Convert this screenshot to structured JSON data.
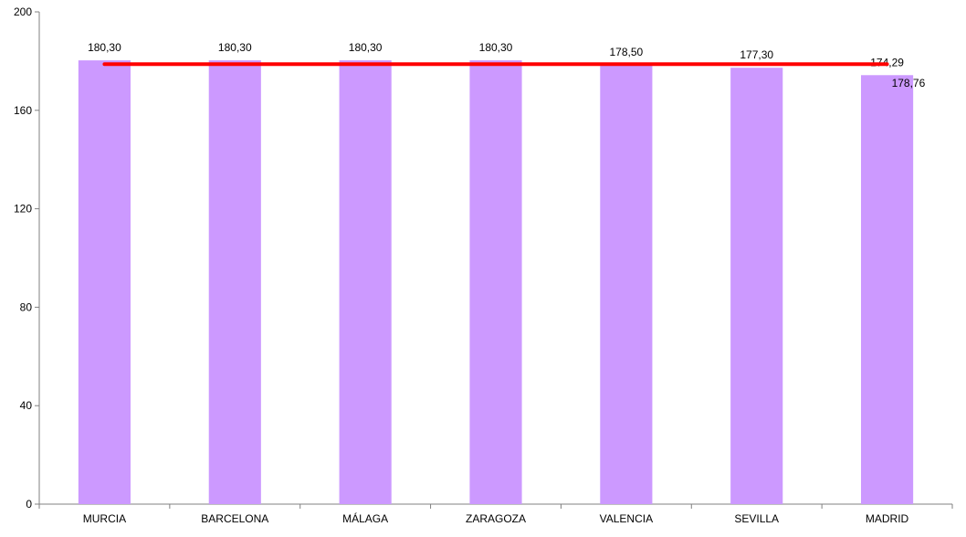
{
  "chart_data": {
    "type": "bar",
    "title": "",
    "xlabel": "",
    "ylabel": "",
    "categories": [
      "MURCIA",
      "BARCELONA",
      "MÁLAGA",
      "ZARAGOZA",
      "VALENCIA",
      "SEVILLA",
      "MADRID"
    ],
    "values": [
      180.3,
      180.3,
      180.3,
      180.3,
      178.5,
      177.3,
      174.29
    ],
    "value_labels": [
      "180,30",
      "180,30",
      "180,30",
      "180,30",
      "178,50",
      "177,30",
      "174,29"
    ],
    "average_line": {
      "value": 178.76,
      "label": "178,76",
      "color": "#ff0000"
    },
    "ylim": [
      0,
      200
    ],
    "yticks": [
      0,
      40,
      80,
      120,
      160,
      200
    ],
    "ytick_labels": [
      "0",
      "40",
      "80",
      "120",
      "160",
      "200"
    ],
    "grid": false,
    "legend": "none",
    "bar_color": "#cc99ff",
    "axis_color": "#808080"
  }
}
